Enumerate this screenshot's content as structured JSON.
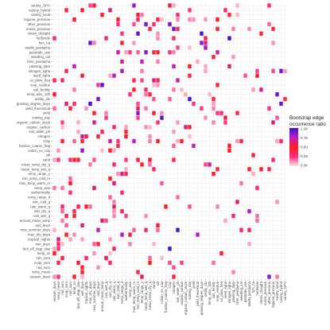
{
  "chart_data": {
    "type": "heatmap",
    "legend_title": [
      "Bootstrap edge",
      "occurrence ratio"
    ],
    "legend_ticks": [
      "1.00",
      "0.75",
      "0.50",
      "0.25",
      "0.00"
    ],
    "value_range": [
      0,
      1
    ],
    "color_scale": [
      "#fce6e6",
      "#ff2d7a",
      "#ff1f1f",
      "#c020c0",
      "#3a10e0"
    ],
    "rows": [
      "variety_OPV",
      "variety_hybrid",
      "variety_local",
      "legume_previous",
      "other_previous",
      "maize_previous",
      "stress_drought",
      "herbicide",
      "fym_ha",
      "totalN_perdayha",
      "pesticide_use",
      "weeding_cat",
      "hhnr_perdayha",
      "planting_date",
      "nitrogen_kgha",
      "seed_kgha",
      "ox_plow_freq",
      "crop_residue",
      "soil_fertility",
      "temp_asis_100",
      "aridity_idx",
      "growing_degree_days",
      "yield_theoretical",
      "yield",
      "sowing_day",
      "organic_carbon_stock",
      "organic_carbon",
      "soil_water_ph",
      "nitrogen",
      "Clay",
      "fraction_coarse_frag",
      "cation_ex_cap",
      "silt",
      "sand",
      "mean_temp_dry_q",
      "mean_temp_wet_q",
      "temp_range_y",
      "min_temp_cold_m",
      "max_temp_warm_m",
      "temp_asis",
      "isothermality",
      "temp_range_d",
      "rain_cold_q",
      "rain_warm_q",
      "rain_dry_q",
      "rain_wet_q",
      "annual_mean_temp",
      "arid_days",
      "max_summer_days",
      "max_dry_days",
      "tropical_nights",
      "wet_days",
      "biol_eff_degr_day",
      "temp_sv",
      "rain_sum",
      "evap_sum",
      "rad_sum",
      "temp_mean",
      "season_days"
    ],
    "columns": [
      "season_days",
      "temp_mean",
      "rad_sum",
      "evap_sum",
      "rain_sum",
      "temp_sv",
      "biol_eff_degr_day",
      "wet_days",
      "tropical_nights",
      "max_dry_days",
      "max_summer_days",
      "arid_days",
      "annual_mean_temp",
      "rain_wet_q",
      "rain_dry_q",
      "rain_warm_q",
      "rain_cold_q",
      "temp_range_d",
      "isothermality",
      "temp_asis",
      "max_temp_warm_m",
      "min_temp_cold_m",
      "temp_range_y",
      "mean_temp_wet_q",
      "mean_temp_dry_q",
      "sand",
      "silt",
      "cation_ex_cap",
      "fraction_coarse_frag",
      "Clay",
      "nitrogen",
      "soil_water_ph",
      "organic_carbon",
      "organic_carbon_stock",
      "sowing_day",
      "yield",
      "yield_theoretical",
      "growing_degree_days",
      "aridity_idx",
      "temp_asis_100",
      "soil_fertility",
      "crop_residue",
      "ox_plow_freq",
      "seed_kgha",
      "nitrogen_kgha",
      "planting_date",
      "hhnr_perdayha",
      "weeding_cat",
      "pesticide_use",
      "totalN_perdayha",
      "fym_ha",
      "herbicide",
      "stress_drought",
      "maize_previous",
      "other_previous",
      "legume_previous",
      "variety_local",
      "variety_hybrid",
      "variety_OPV"
    ]
  }
}
